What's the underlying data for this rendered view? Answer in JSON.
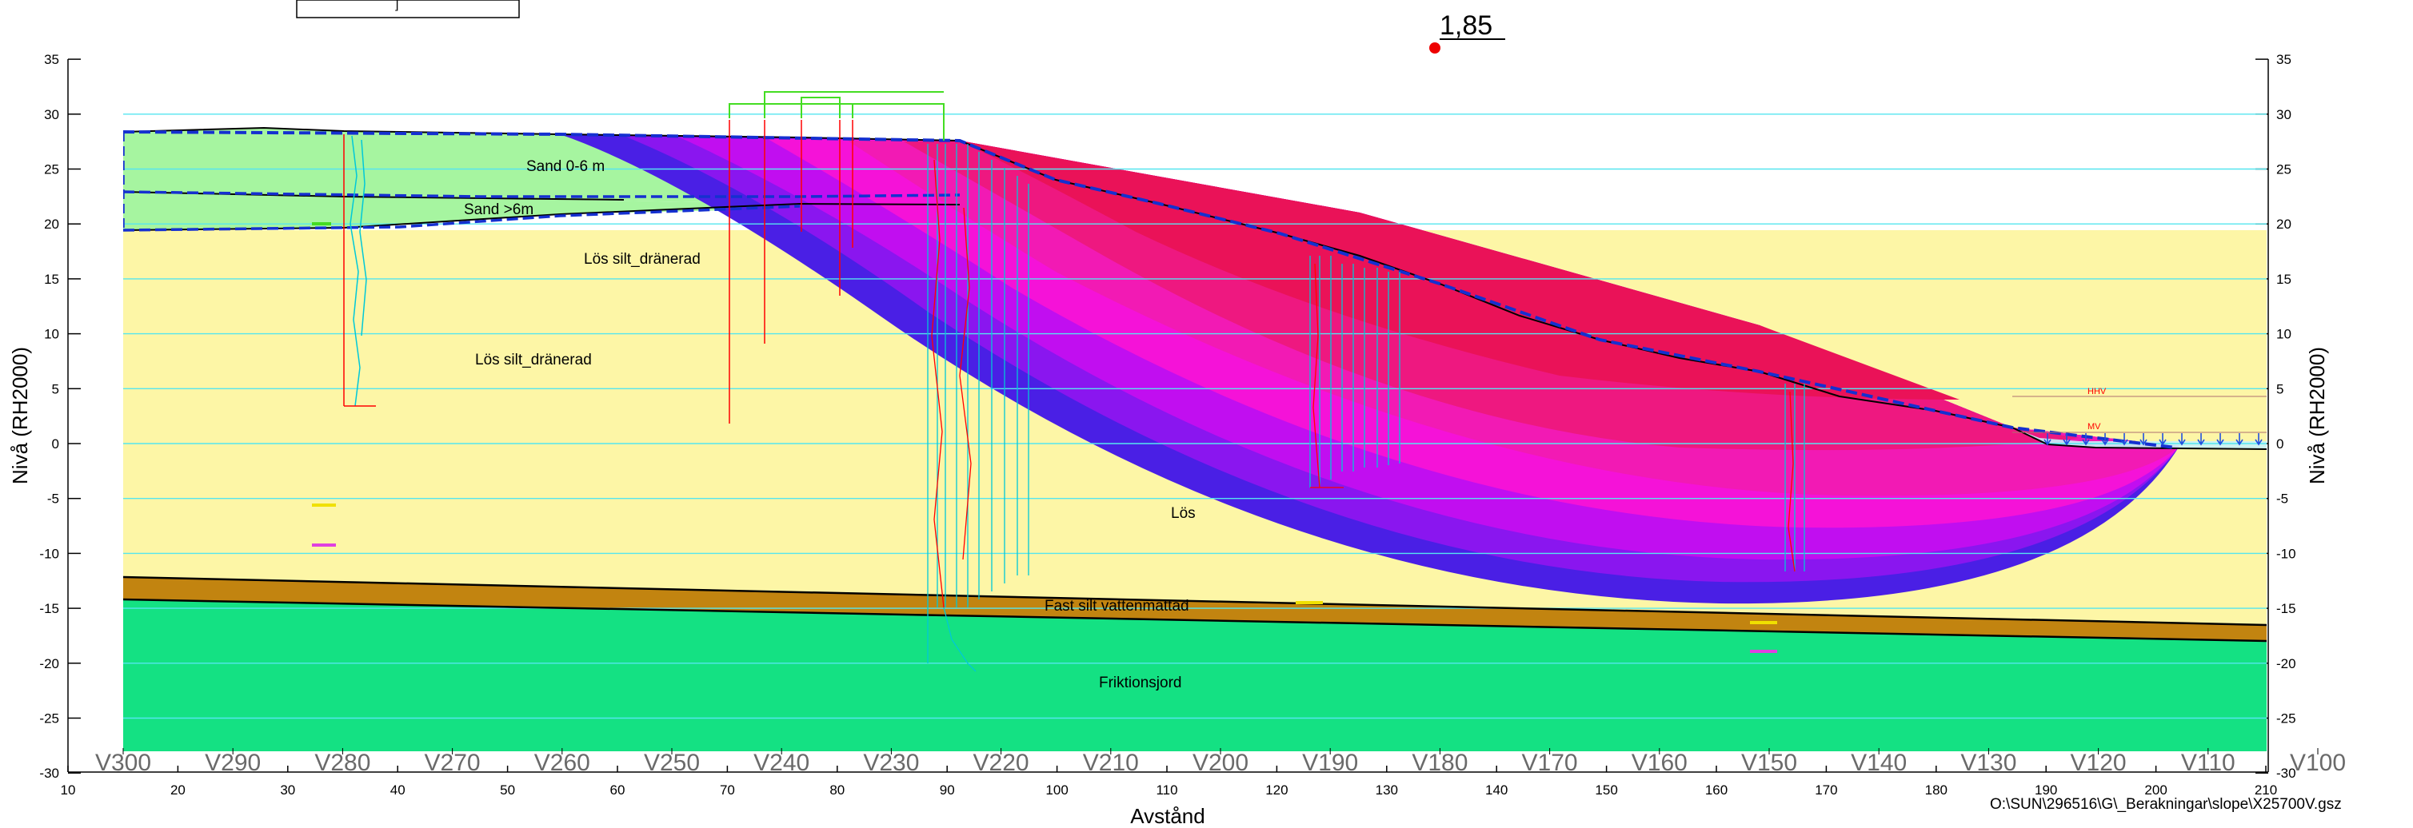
{
  "factor_of_safety": "1,85",
  "x_axis": {
    "label": "Avstånd",
    "ticks": [
      "10",
      "20",
      "30",
      "40",
      "50",
      "60",
      "70",
      "80",
      "90",
      "100",
      "110",
      "120",
      "130",
      "140",
      "150",
      "160",
      "170",
      "180",
      "190",
      "200",
      "210"
    ]
  },
  "y_axis": {
    "left_label": "Nivå (RH2000)",
    "right_label": "Nivå (RH2000)",
    "ticks": [
      "35",
      "30",
      "25",
      "20",
      "15",
      "10",
      "5",
      "0",
      "-5",
      "-10",
      "-15",
      "-20",
      "-25",
      "-30"
    ]
  },
  "section_markers": [
    "V300",
    "V290",
    "V280",
    "V270",
    "V260",
    "V250",
    "V240",
    "V230",
    "V220",
    "V210",
    "V200",
    "V190",
    "V180",
    "V170",
    "V160",
    "V150",
    "V140",
    "V130",
    "V120",
    "V110",
    "V100"
  ],
  "soil_labels": {
    "sand_top": "Sand 0-6 m",
    "sand_deep": "Sand >6m",
    "silt_upper": "Lös silt_dränerad",
    "silt_lower": "Lös silt_dränerad",
    "silt_partial": "Lös",
    "firm_silt": "Fast silt vattenmättad",
    "friction": "Friktionsjord"
  },
  "water_labels": {
    "hhv": "HHV",
    "mv": "MV"
  },
  "file_path": "O:\\SUN\\296516\\G\\_Berakningar\\slope\\X25700V.gsz",
  "colors": {
    "sand": "#a6f5a0",
    "silt": "#fdf6a6",
    "firm_silt": "#c28410",
    "friction": "#14e183",
    "slip_bands": [
      "#4a1fe5",
      "#8a16ef",
      "#c10ef0",
      "#f512d8",
      "#f21ab4",
      "#ee1880",
      "#ea1258"
    ],
    "grid": "#55e6ef",
    "boundary": "#1530d0",
    "fs_dot": "#ee0000"
  }
}
